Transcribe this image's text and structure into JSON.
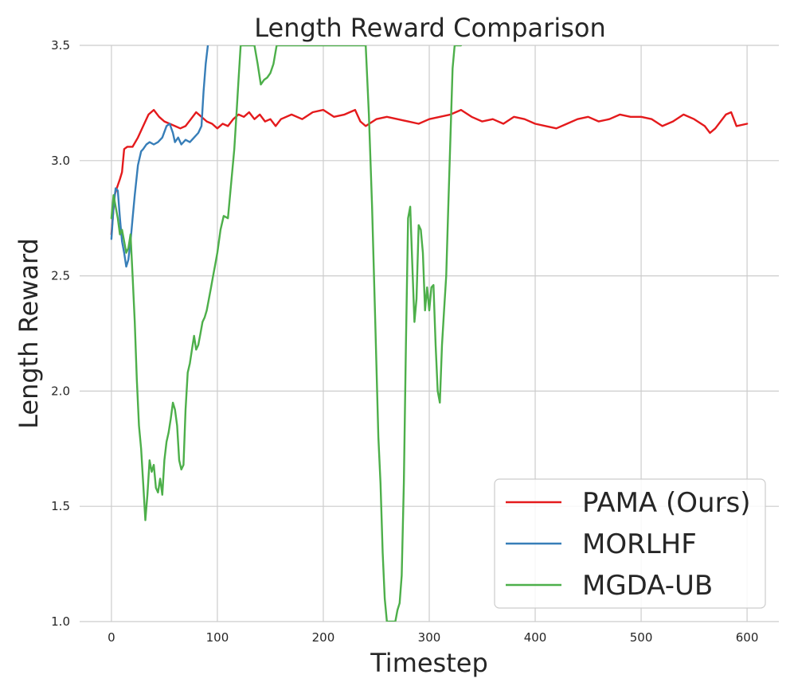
{
  "chart_data": {
    "type": "line",
    "title": "Length Reward Comparison",
    "xlabel": "Timestep",
    "ylabel": "Length Reward",
    "xlim": [
      -30,
      630
    ],
    "ylim": [
      1.0,
      3.5
    ],
    "xticks": [
      0,
      100,
      200,
      300,
      400,
      500,
      600
    ],
    "yticks": [
      1.0,
      1.5,
      2.0,
      2.5,
      3.0,
      3.5
    ],
    "xtick_labels": [
      "0",
      "100",
      "200",
      "300",
      "400",
      "500",
      "600"
    ],
    "ytick_labels": [
      "1.0",
      "1.5",
      "2.0",
      "2.5",
      "3.0",
      "3.5"
    ],
    "grid": true,
    "legend_position": "lower-right",
    "series": [
      {
        "name": "PAMA (Ours)",
        "color": "#e41a1c",
        "x": [
          0,
          3,
          5,
          8,
          10,
          12,
          15,
          20,
          25,
          30,
          35,
          40,
          45,
          50,
          55,
          60,
          65,
          70,
          75,
          80,
          85,
          90,
          95,
          100,
          105,
          110,
          115,
          120,
          125,
          130,
          135,
          140,
          145,
          150,
          155,
          160,
          170,
          180,
          190,
          200,
          210,
          220,
          225,
          230,
          235,
          240,
          250,
          260,
          270,
          280,
          290,
          300,
          310,
          320,
          330,
          340,
          350,
          360,
          370,
          380,
          390,
          400,
          410,
          420,
          430,
          440,
          450,
          460,
          470,
          480,
          490,
          500,
          510,
          520,
          530,
          540,
          550,
          560,
          565,
          570,
          580,
          585,
          590,
          600
        ],
        "y": [
          2.68,
          2.85,
          2.88,
          2.92,
          2.95,
          3.05,
          3.06,
          3.06,
          3.1,
          3.15,
          3.2,
          3.22,
          3.19,
          3.17,
          3.16,
          3.15,
          3.14,
          3.15,
          3.18,
          3.21,
          3.19,
          3.17,
          3.16,
          3.14,
          3.16,
          3.15,
          3.18,
          3.2,
          3.19,
          3.21,
          3.18,
          3.2,
          3.17,
          3.18,
          3.15,
          3.18,
          3.2,
          3.18,
          3.21,
          3.22,
          3.19,
          3.2,
          3.21,
          3.22,
          3.17,
          3.15,
          3.18,
          3.19,
          3.18,
          3.17,
          3.16,
          3.18,
          3.19,
          3.2,
          3.22,
          3.19,
          3.17,
          3.18,
          3.16,
          3.19,
          3.18,
          3.16,
          3.15,
          3.14,
          3.16,
          3.18,
          3.19,
          3.17,
          3.18,
          3.2,
          3.19,
          3.19,
          3.18,
          3.15,
          3.17,
          3.2,
          3.18,
          3.15,
          3.12,
          3.14,
          3.2,
          3.21,
          3.15,
          3.16
        ]
      },
      {
        "name": "MORLHF",
        "color": "#377eb8",
        "x": [
          0,
          2,
          4,
          6,
          8,
          10,
          12,
          14,
          16,
          18,
          20,
          22,
          25,
          28,
          30,
          33,
          36,
          40,
          44,
          48,
          52,
          55,
          58,
          60,
          63,
          66,
          70,
          74,
          78,
          82,
          85,
          87,
          89,
          91
        ],
        "y": [
          2.66,
          2.8,
          2.88,
          2.87,
          2.75,
          2.65,
          2.6,
          2.54,
          2.57,
          2.65,
          2.75,
          2.85,
          2.98,
          3.04,
          3.05,
          3.07,
          3.08,
          3.07,
          3.08,
          3.1,
          3.15,
          3.16,
          3.12,
          3.08,
          3.1,
          3.07,
          3.09,
          3.08,
          3.1,
          3.12,
          3.15,
          3.3,
          3.42,
          3.5
        ]
      },
      {
        "name": "MGDA-UB",
        "color": "#4daf4a",
        "x": [
          0,
          2,
          4,
          6,
          8,
          10,
          12,
          14,
          16,
          18,
          20,
          22,
          24,
          26,
          28,
          30,
          32,
          34,
          36,
          38,
          40,
          42,
          44,
          46,
          48,
          50,
          52,
          54,
          56,
          58,
          60,
          62,
          64,
          66,
          68,
          70,
          72,
          74,
          76,
          78,
          80,
          82,
          84,
          86,
          88,
          90,
          92,
          94,
          96,
          98,
          100,
          103,
          106,
          110,
          113,
          116,
          118,
          120,
          122,
          125,
          128,
          130,
          132,
          135,
          138,
          141,
          144,
          147,
          150,
          153,
          156,
          160,
          165,
          170,
          240,
          243,
          246,
          249,
          252,
          254,
          256,
          258,
          260,
          262,
          264,
          266,
          268,
          270,
          272,
          274,
          276,
          278,
          280,
          282,
          284,
          286,
          288,
          290,
          292,
          294,
          296,
          298,
          300,
          302,
          304,
          306,
          308,
          310,
          312,
          314,
          316,
          318,
          320,
          322,
          324,
          326,
          328,
          330
        ],
        "y": [
          2.75,
          2.85,
          2.8,
          2.75,
          2.68,
          2.7,
          2.65,
          2.6,
          2.62,
          2.68,
          2.5,
          2.3,
          2.05,
          1.85,
          1.75,
          1.6,
          1.44,
          1.55,
          1.7,
          1.65,
          1.68,
          1.58,
          1.56,
          1.62,
          1.55,
          1.7,
          1.78,
          1.82,
          1.88,
          1.95,
          1.92,
          1.85,
          1.7,
          1.66,
          1.68,
          1.92,
          2.08,
          2.12,
          2.18,
          2.24,
          2.18,
          2.2,
          2.25,
          2.3,
          2.32,
          2.35,
          2.4,
          2.45,
          2.5,
          2.55,
          2.6,
          2.7,
          2.76,
          2.75,
          2.9,
          3.05,
          3.2,
          3.35,
          3.5,
          3.5,
          3.5,
          3.5,
          3.5,
          3.5,
          3.42,
          3.33,
          3.35,
          3.36,
          3.38,
          3.42,
          3.5,
          3.5,
          3.5,
          3.5,
          3.5,
          3.2,
          2.8,
          2.3,
          1.8,
          1.6,
          1.3,
          1.1,
          1.0,
          1.0,
          1.0,
          1.0,
          1.0,
          1.05,
          1.08,
          1.2,
          1.6,
          2.2,
          2.75,
          2.8,
          2.55,
          2.3,
          2.4,
          2.72,
          2.7,
          2.6,
          2.35,
          2.45,
          2.35,
          2.45,
          2.46,
          2.2,
          2.0,
          1.95,
          2.2,
          2.35,
          2.5,
          2.8,
          3.1,
          3.4,
          3.5,
          3.5,
          3.5,
          3.5
        ]
      }
    ]
  }
}
